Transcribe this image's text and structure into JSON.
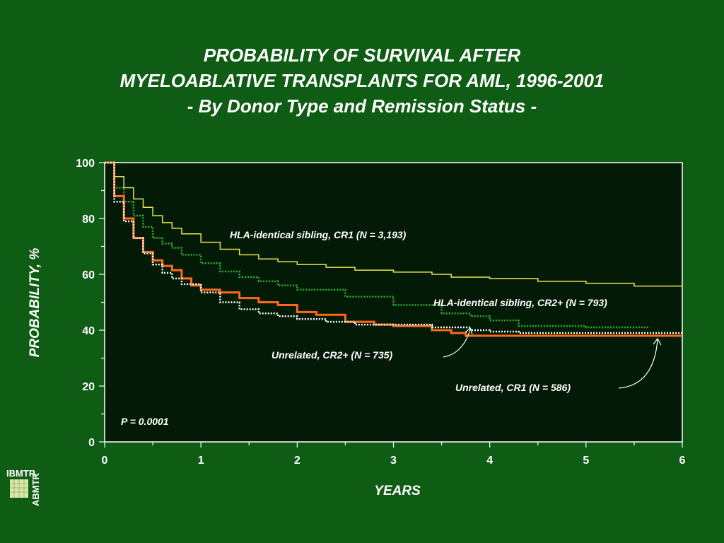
{
  "title_line1": "PROBABILITY OF SURVIVAL AFTER",
  "title_line2": "MYELOABLATIVE TRANSPLANTS FOR AML, 1996-2001",
  "title_line3": "- By Donor Type and Remission Status -",
  "logo": {
    "text_top": "IBMTR",
    "text_side": "ABMTR"
  },
  "chart_data": {
    "type": "line",
    "xlabel": "YEARS",
    "ylabel": "PROBABILITY, %",
    "xlim": [
      0,
      6
    ],
    "ylim": [
      0,
      100
    ],
    "xticks": [
      "0",
      "1",
      "2",
      "3",
      "4",
      "5",
      "6"
    ],
    "yticks": [
      "0",
      "20",
      "40",
      "60",
      "80",
      "100"
    ],
    "annotation": "P = 0.0001",
    "series": [
      {
        "name": "HLA-identical sibling, CR1 (N = 3,193)",
        "color": "#e8e850",
        "style": "solid",
        "x": [
          0,
          0.1,
          0.2,
          0.3,
          0.4,
          0.5,
          0.6,
          0.7,
          0.8,
          1.0,
          1.2,
          1.4,
          1.6,
          1.8,
          2.0,
          2.3,
          2.6,
          3.0,
          3.4,
          3.6,
          4.0,
          4.5,
          5.0,
          5.5,
          6.0
        ],
        "y": [
          100,
          95,
          91,
          87,
          84,
          81,
          78.5,
          76.5,
          74.5,
          71.5,
          69,
          67,
          65.5,
          64.5,
          63.5,
          62.5,
          61.5,
          60.8,
          60,
          59,
          58.5,
          57.5,
          56.8,
          55.8,
          55.5
        ]
      },
      {
        "name": "HLA-identical sibling, CR2+ (N = 793)",
        "color": "#2bb52b",
        "style": "dotted",
        "x": [
          0,
          0.1,
          0.2,
          0.3,
          0.4,
          0.5,
          0.6,
          0.7,
          0.8,
          1.0,
          1.2,
          1.4,
          1.6,
          1.8,
          2.0,
          2.5,
          3.0,
          3.5,
          3.8,
          4.0,
          4.3,
          5.0,
          5.65
        ],
        "y": [
          100,
          91,
          86,
          81,
          77,
          73,
          71,
          69.5,
          67,
          64,
          61,
          59,
          57.5,
          56,
          54.5,
          52,
          49,
          46,
          45,
          43.5,
          41.5,
          41,
          41
        ]
      },
      {
        "name": "Unrelated, CR2+ (N = 735)",
        "color": "#ff6a1a",
        "style": "solid",
        "x": [
          0,
          0.1,
          0.2,
          0.3,
          0.4,
          0.5,
          0.6,
          0.7,
          0.8,
          0.9,
          1.0,
          1.2,
          1.4,
          1.6,
          1.8,
          2.0,
          2.2,
          2.5,
          2.8,
          3.0,
          3.4,
          3.6,
          3.75,
          4.0,
          5.0,
          6.0
        ],
        "y": [
          100,
          88,
          80,
          73,
          68,
          65,
          63,
          61.5,
          58.5,
          56,
          54.5,
          53.5,
          51.5,
          50,
          49,
          46.5,
          45.5,
          43,
          42,
          41.5,
          40,
          39,
          38,
          38,
          38,
          38
        ]
      },
      {
        "name": "Unrelated, CR1 (N = 586)",
        "color": "#ffffff",
        "style": "dotted",
        "x": [
          0,
          0.1,
          0.2,
          0.3,
          0.4,
          0.5,
          0.6,
          0.7,
          0.8,
          1.0,
          1.2,
          1.4,
          1.6,
          1.8,
          2.0,
          2.3,
          2.6,
          3.0,
          3.4,
          3.8,
          4.0,
          4.3,
          4.5,
          5.0,
          6.0
        ],
        "y": [
          100,
          86,
          79,
          73,
          67.5,
          63.5,
          60.5,
          58.5,
          56.5,
          53.5,
          50,
          47.5,
          46,
          45,
          44,
          43,
          42,
          42,
          41,
          40,
          39.5,
          39,
          39,
          39,
          39
        ]
      }
    ]
  }
}
